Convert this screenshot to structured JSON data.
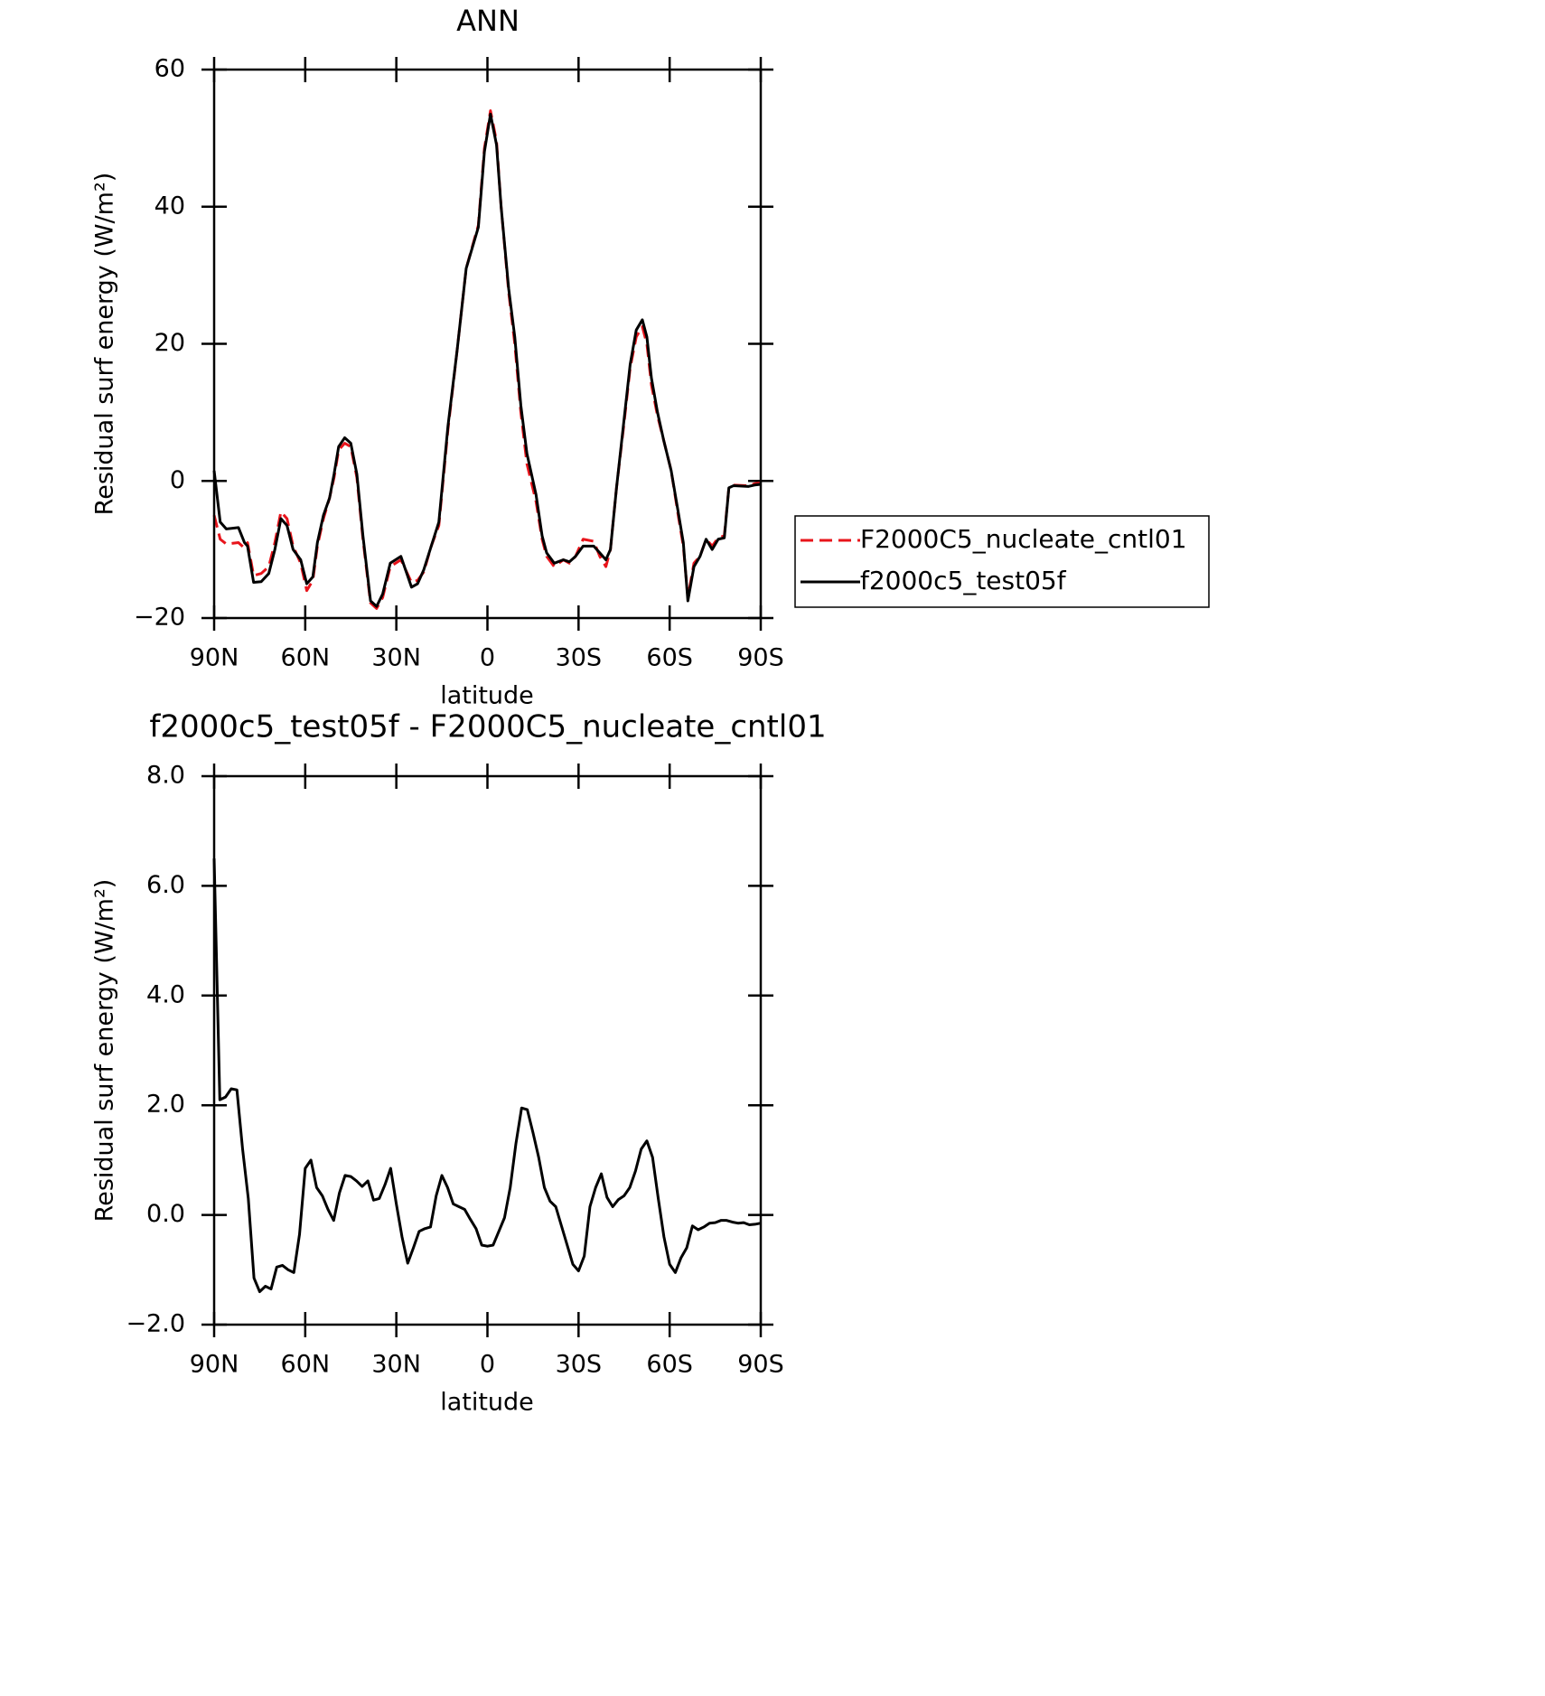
{
  "chart_data": [
    {
      "type": "line",
      "title": "ANN",
      "xlabel": "latitude",
      "ylabel": "Residual surf energy (W/m²)",
      "xlim": [
        90,
        -90
      ],
      "xticks": [
        {
          "value": 90,
          "label": "90N"
        },
        {
          "value": 60,
          "label": "60N"
        },
        {
          "value": 30,
          "label": "30N"
        },
        0,
        {
          "value": -30,
          "label": "30S"
        },
        {
          "value": -60,
          "label": "60S"
        },
        {
          "value": -90,
          "label": "90S"
        }
      ],
      "ylim": [
        -20,
        60
      ],
      "yticks": [
        {
          "value": -20,
          "label": "−20"
        },
        0,
        20,
        40,
        60
      ],
      "legend": "right",
      "x": [
        90,
        88,
        86,
        82,
        80,
        79,
        77,
        74.5,
        72,
        70,
        68,
        66,
        64,
        61.5,
        59.5,
        57.5,
        56,
        54,
        52,
        50.5,
        49,
        47,
        45,
        43,
        41,
        38.5,
        36.5,
        34.5,
        32,
        28.5,
        25,
        23,
        21,
        18.5,
        16,
        13,
        10,
        7,
        3,
        1,
        -1,
        -3,
        -4.5,
        -7,
        -9,
        -11,
        -13,
        -16,
        -18,
        -19.5,
        -22,
        -25,
        -27,
        -29,
        -31.5,
        -35,
        -37,
        -39,
        -40.5,
        -42.5,
        -45,
        -47,
        -49,
        -51,
        -52.5,
        -54,
        -56,
        -58,
        -60.5,
        -63,
        -64.5,
        -66,
        -68,
        -70,
        -72,
        -74,
        -76,
        -78,
        -79.5,
        -81,
        -86,
        -88,
        -90
      ],
      "series": [
        {
          "name": "F2000C5_nucleate_cntl01",
          "color": "#e8141b",
          "style": "dashed",
          "values": [
            -5,
            -8.5,
            -9.2,
            -9,
            -9.8,
            -9,
            -13.8,
            -13.5,
            -12.5,
            -9,
            -4.5,
            -5.5,
            -9.5,
            -12,
            -16,
            -14.5,
            -9.5,
            -5.5,
            -2.5,
            0.5,
            4.5,
            5.5,
            5,
            0.5,
            -8.5,
            -17.8,
            -18.6,
            -17,
            -12.5,
            -11.5,
            -14.8,
            -14.5,
            -13.3,
            -9.5,
            -6.5,
            7.5,
            19,
            31,
            37.3,
            48.5,
            54,
            49.5,
            40,
            27.5,
            20,
            10,
            2.5,
            -3,
            -8.5,
            -11,
            -12.5,
            -11.5,
            -12,
            -11,
            -8.5,
            -8.8,
            -11,
            -12.5,
            -10,
            -1,
            8.5,
            16.5,
            21,
            22.5,
            20,
            14,
            9.5,
            6,
            1.5,
            -5.5,
            -9.5,
            -17,
            -12,
            -11,
            -8.5,
            -9.5,
            -8.3,
            -8,
            -1,
            -0.6,
            -0.7,
            -0.4,
            -0.3
          ]
        },
        {
          "name": "f2000c5_test05f",
          "color": "#000000",
          "style": "solid",
          "values": [
            1.5,
            -6,
            -7,
            -6.8,
            -9,
            -9.5,
            -14.8,
            -14.7,
            -13.5,
            -10,
            -5.5,
            -6.5,
            -10,
            -11.5,
            -15,
            -14,
            -9,
            -5,
            -2.5,
            1,
            5,
            6.3,
            5.5,
            1,
            -8,
            -17.5,
            -18.3,
            -16.5,
            -12,
            -11,
            -15.5,
            -15,
            -13,
            -9.5,
            -6,
            8,
            19,
            31,
            37,
            48,
            53.5,
            49,
            40,
            28,
            21,
            11,
            4,
            -2,
            -8,
            -10.5,
            -12,
            -11.5,
            -11.8,
            -11,
            -9.5,
            -9.5,
            -10.5,
            -11.5,
            -10,
            -1,
            9,
            17,
            22,
            23.5,
            21,
            15,
            10,
            6,
            1.5,
            -5,
            -9,
            -17.5,
            -12.5,
            -11,
            -8.5,
            -10,
            -8.5,
            -8.3,
            -1,
            -0.7,
            -0.8,
            -0.6,
            -0.5
          ]
        }
      ]
    },
    {
      "type": "line",
      "title": "f2000c5_test05f - F2000C5_nucleate_cntl01",
      "xlabel": "latitude",
      "ylabel": "Residual surf energy (W/m²)",
      "xlim": [
        90,
        -90
      ],
      "xticks": [
        {
          "value": 90,
          "label": "90N"
        },
        {
          "value": 60,
          "label": "60N"
        },
        {
          "value": 30,
          "label": "30N"
        },
        0,
        {
          "value": -30,
          "label": "30S"
        },
        {
          "value": -60,
          "label": "60S"
        },
        {
          "value": -90,
          "label": "90S"
        }
      ],
      "ylim": [
        -2,
        8
      ],
      "yticks": [
        {
          "value": -2,
          "label": "−2.0"
        },
        {
          "value": 0,
          "label": "0.0"
        },
        {
          "value": 2,
          "label": "2.0"
        },
        {
          "value": 4,
          "label": "4.0"
        },
        {
          "value": 6,
          "label": "6.0"
        },
        {
          "value": 8,
          "label": "8.0"
        }
      ],
      "x": [
        90,
        88.125,
        86.25,
        84.375,
        82.5,
        80.625,
        78.75,
        76.875,
        75,
        73.125,
        71.25,
        69.375,
        67.5,
        65.625,
        63.75,
        61.875,
        60,
        58.125,
        56.25,
        54.375,
        52.5,
        50.625,
        48.75,
        46.875,
        45,
        43.125,
        41.25,
        39.375,
        37.5,
        35.625,
        33.75,
        31.875,
        30,
        28.125,
        26.25,
        24.375,
        22.5,
        20.625,
        18.75,
        16.875,
        15,
        13.125,
        11.25,
        9.375,
        7.5,
        5.625,
        3.75,
        1.875,
        0,
        -1.875,
        -3.75,
        -5.625,
        -7.5,
        -9.375,
        -11.25,
        -13.125,
        -15,
        -16.875,
        -18.75,
        -20.625,
        -22.5,
        -24.375,
        -26.25,
        -28.125,
        -30,
        -31.875,
        -33.75,
        -35.625,
        -37.5,
        -39.375,
        -41.25,
        -43.125,
        -45,
        -46.875,
        -48.75,
        -50.625,
        -52.5,
        -54.375,
        -56.25,
        -58.125,
        -60,
        -61.875,
        -63.75,
        -65.625,
        -67.5,
        -69.375,
        -71.25,
        -73.125,
        -75,
        -76.875,
        -78.75,
        -80.625,
        -82.5,
        -84.375,
        -86.25,
        -88.125,
        -90
      ],
      "series": [
        {
          "color": "#000000",
          "style": "solid",
          "values": [
            6.5,
            2.1,
            2.15,
            2.3,
            2.28,
            1.2,
            0.3,
            -1.15,
            -1.4,
            -1.3,
            -1.35,
            -0.95,
            -0.92,
            -1.0,
            -1.05,
            -0.35,
            0.85,
            1.0,
            0.5,
            0.35,
            0.1,
            -0.1,
            0.4,
            0.72,
            0.7,
            0.62,
            0.52,
            0.62,
            0.27,
            0.3,
            0.55,
            0.85,
            0.2,
            -0.4,
            -0.88,
            -0.6,
            -0.3,
            -0.25,
            -0.22,
            0.35,
            0.72,
            0.5,
            0.2,
            0.15,
            0.1,
            -0.08,
            -0.25,
            -0.55,
            -0.57,
            -0.55,
            -0.3,
            -0.05,
            0.5,
            1.3,
            1.95,
            1.92,
            1.5,
            1.05,
            0.5,
            0.25,
            0.15,
            -0.2,
            -0.55,
            -0.9,
            -1.02,
            -0.75,
            0.15,
            0.5,
            0.75,
            0.32,
            0.15,
            0.28,
            0.35,
            0.5,
            0.8,
            1.2,
            1.35,
            1.05,
            0.3,
            -0.4,
            -0.9,
            -1.05,
            -0.78,
            -0.6,
            -0.2,
            -0.27,
            -0.22,
            -0.15,
            -0.14,
            -0.1,
            -0.1,
            -0.13,
            -0.15,
            -0.14,
            -0.18,
            -0.17,
            -0.15
          ]
        }
      ]
    }
  ]
}
